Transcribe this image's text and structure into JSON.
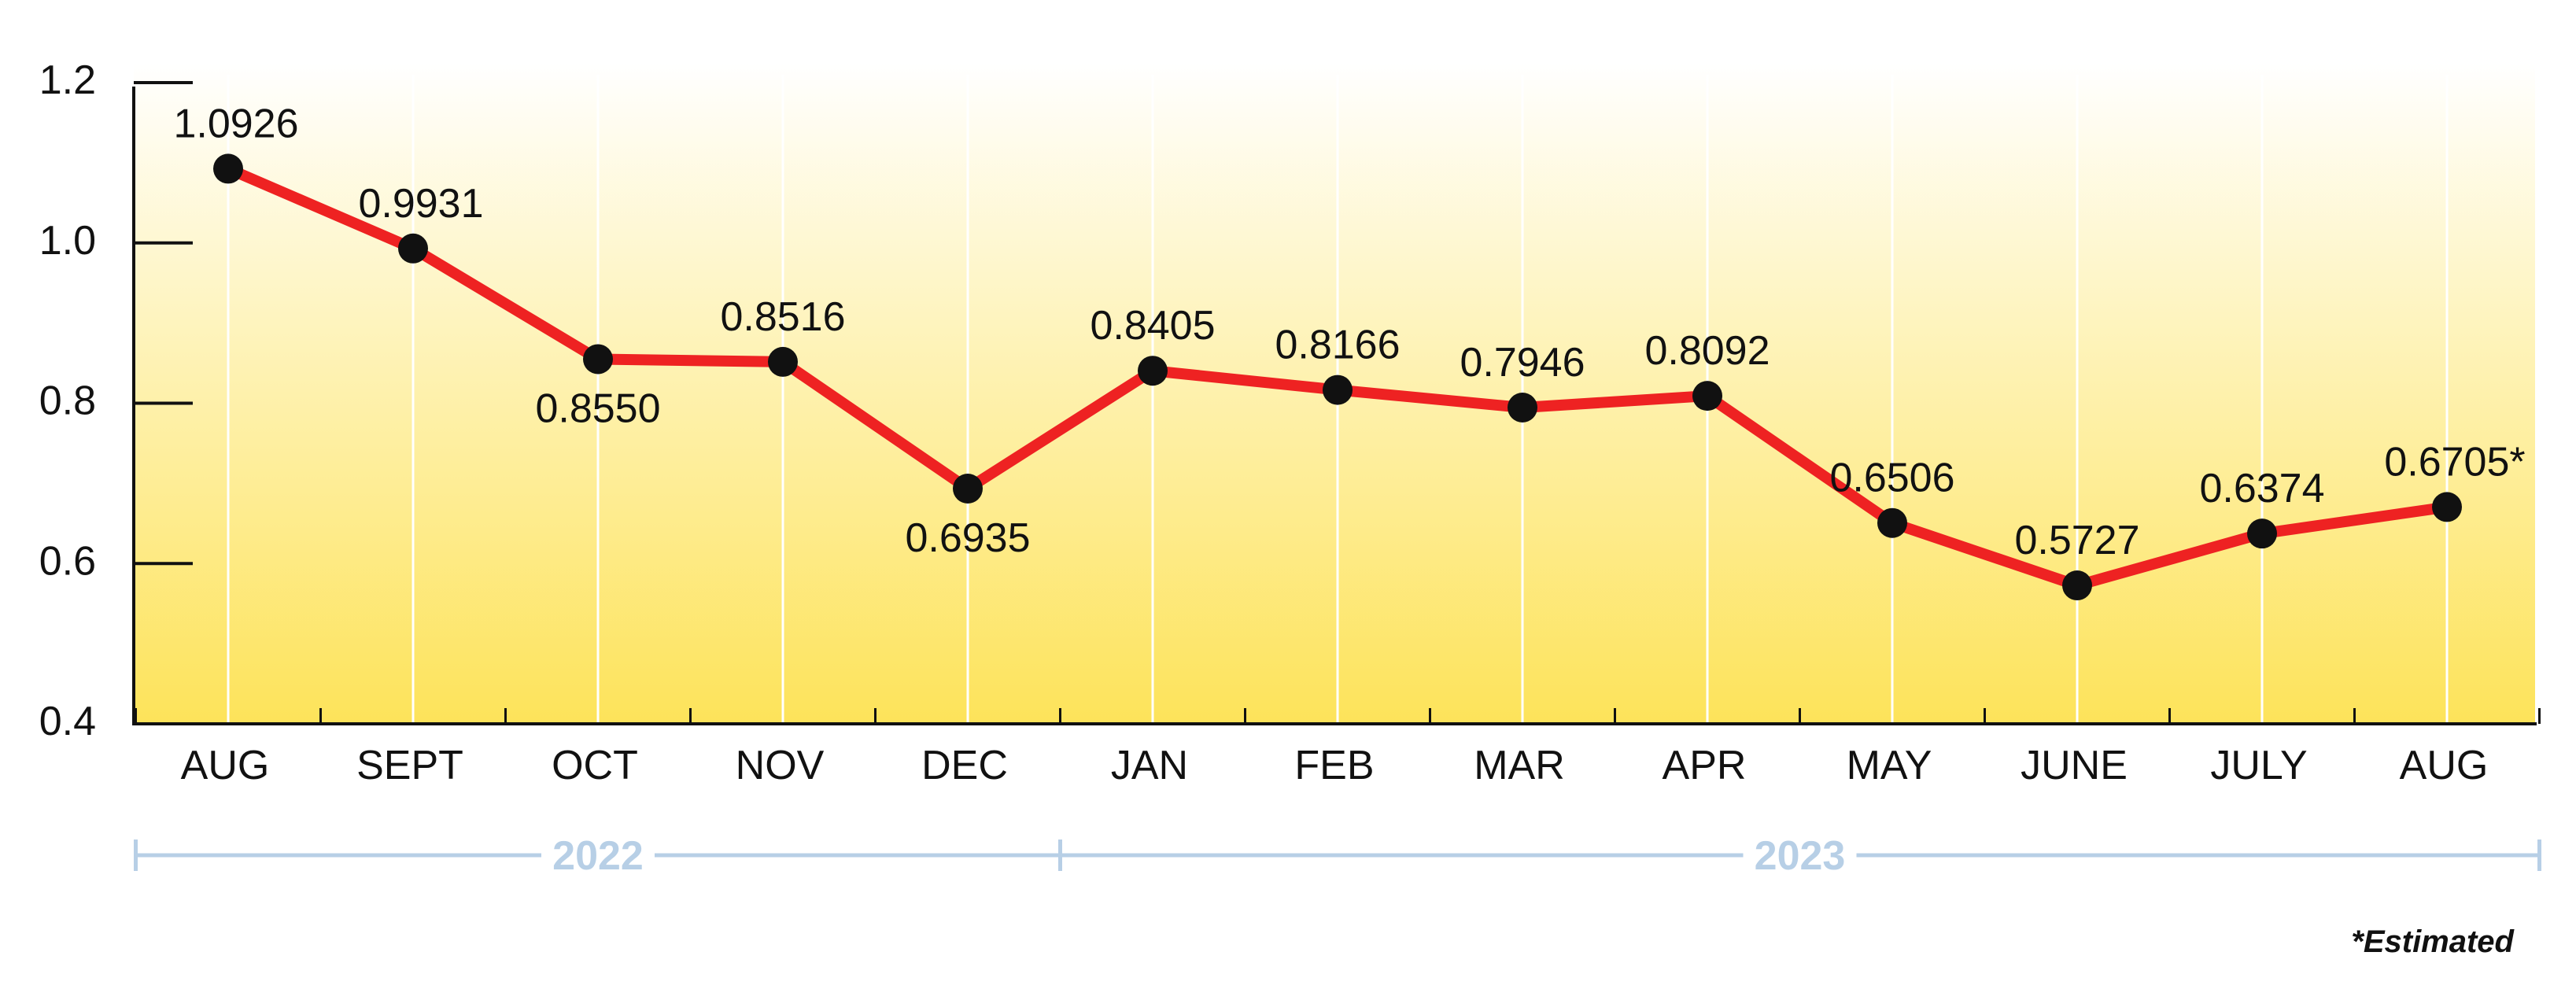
{
  "chart_data": {
    "type": "line",
    "categories": [
      "AUG",
      "SEPT",
      "OCT",
      "NOV",
      "DEC",
      "JAN",
      "FEB",
      "MAR",
      "APR",
      "MAY",
      "JUNE",
      "JULY",
      "AUG"
    ],
    "series": [
      {
        "values": [
          1.0926,
          0.9931,
          0.855,
          0.8516,
          0.6935,
          0.8405,
          0.8166,
          0.7946,
          0.8092,
          0.6506,
          0.5727,
          0.6374,
          0.6705
        ]
      }
    ],
    "data_labels": [
      "1.0926",
      "0.9931",
      "0.8550",
      "0.8516",
      "0.6935",
      "0.8405",
      "0.8166",
      "0.7946",
      "0.8092",
      "0.6506",
      "0.5727",
      "0.6374",
      "0.6705*"
    ],
    "y_ticks": [
      "0.4",
      "0.6",
      "0.8",
      "1.0",
      "1.2"
    ],
    "ylim": [
      0.4,
      1.2
    ],
    "year_groups": [
      {
        "label": "2022",
        "from": 0,
        "to": 5
      },
      {
        "label": "2023",
        "from": 5,
        "to": 13
      }
    ],
    "footnote": "*Estimated",
    "grid": true,
    "colors": {
      "line": "#ee2222",
      "marker": "#111111",
      "year_bracket": "#b7cfe6",
      "background_top": "#ffffff",
      "background_bottom": "#fde35a"
    }
  }
}
